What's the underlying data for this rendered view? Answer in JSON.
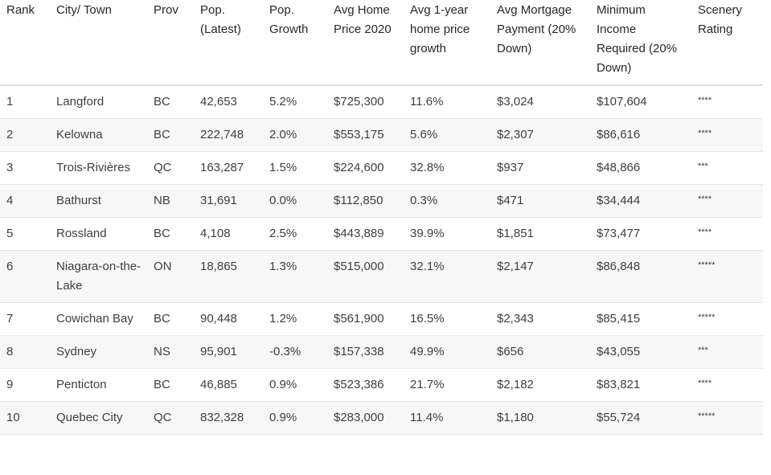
{
  "table": {
    "headers": [
      "Rank",
      "City/ Town",
      "Prov",
      "Pop. (Latest)",
      "Pop. Growth",
      "Avg Home Price 2020",
      "Avg 1-year home price growth",
      "Avg Mortgage Payment (20% Down)",
      "Minimum Income Required (20% Down)",
      "Scenery Rating"
    ],
    "rows": [
      [
        "1",
        "Langford",
        "BC",
        "42,653",
        "5.2%",
        "$725,300",
        "11.6%",
        "$3,024",
        "$107,604",
        "****"
      ],
      [
        "2",
        "Kelowna",
        "BC",
        "222,748",
        "2.0%",
        "$553,175",
        "5.6%",
        "$2,307",
        "$86,616",
        "****"
      ],
      [
        "3",
        "Trois-Rivières",
        "QC",
        "163,287",
        "1.5%",
        "$224,600",
        "32.8%",
        "$937",
        "$48,866",
        "***"
      ],
      [
        "4",
        "Bathurst",
        "NB",
        "31,691",
        "0.0%",
        "$112,850",
        "0.3%",
        "$471",
        "$34,444",
        "****"
      ],
      [
        "5",
        "Rossland",
        "BC",
        "4,108",
        "2.5%",
        "$443,889",
        "39.9%",
        "$1,851",
        "$73,477",
        "****"
      ],
      [
        "6",
        "Niagara-on-the-Lake",
        "ON",
        "18,865",
        "1.3%",
        "$515,000",
        "32.1%",
        "$2,147",
        "$86,848",
        "*****"
      ],
      [
        "7",
        "Cowichan Bay",
        "BC",
        "90,448",
        "1.2%",
        "$561,900",
        "16.5%",
        "$2,343",
        "$85,415",
        "*****"
      ],
      [
        "8",
        "Sydney",
        "NS",
        "95,901",
        "-0.3%",
        "$157,338",
        "49.9%",
        "$656",
        "$43,055",
        "***"
      ],
      [
        "9",
        "Penticton",
        "BC",
        "46,885",
        "0.9%",
        "$523,386",
        "21.7%",
        "$2,182",
        "$83,821",
        "****"
      ],
      [
        "10",
        "Quebec City",
        "QC",
        "832,328",
        "0.9%",
        "$283,000",
        "11.4%",
        "$1,180",
        "$55,724",
        "*****"
      ]
    ]
  }
}
